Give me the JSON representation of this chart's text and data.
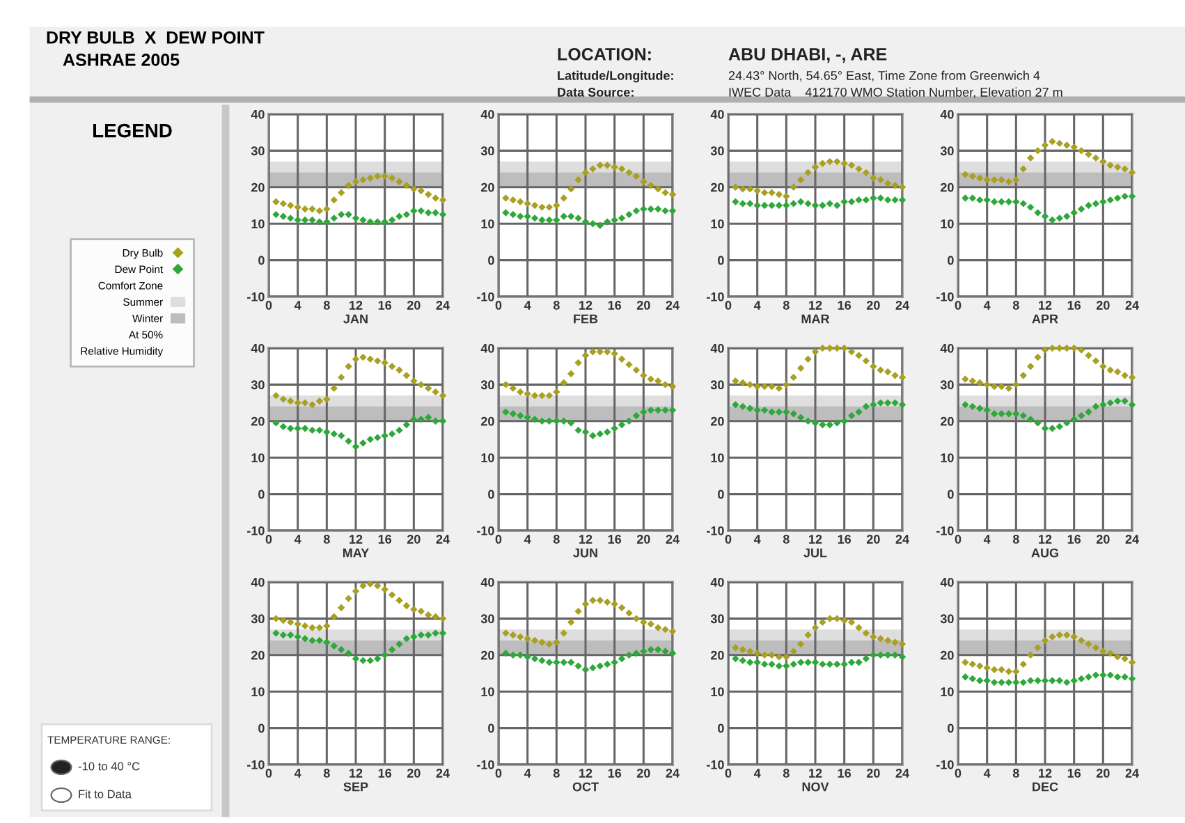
{
  "chart_data": [
    {
      "type": "scatter",
      "title": "DRY BULB  X  DEW POINT",
      "subtitle": "ASHRAE 2005",
      "xlabel": "JAN",
      "legend": "left",
      "grid": true,
      "marker": "diamond",
      "annotations": [
        "LOCATION:",
        "ABU DHABI, -, ARE",
        "Latitude/Longitude:",
        "24.43° North, 54.65° East, Time Zone from Greenwich 4",
        "Data Source:",
        "IWEC Data    412170 WMO Station Number, Elevation 27 m",
        "LEGEND",
        "Comfort Zone",
        "At 50%",
        "Relative Humidity",
        "TEMPERATURE RANGE:",
        "-10 to 40 °C",
        "Fit to Data"
      ],
      "x": [
        1,
        2,
        3,
        4,
        5,
        6,
        7,
        8,
        9,
        10,
        11,
        12,
        13,
        14,
        15,
        16,
        17,
        18,
        19,
        20,
        21,
        22,
        23,
        24
      ],
      "xlim": [
        0,
        24
      ],
      "xticks": [
        0,
        4,
        8,
        12,
        16,
        20,
        24
      ],
      "ylim": [
        -10,
        40
      ],
      "yticks": [
        -10,
        0,
        10,
        20,
        30,
        40
      ],
      "bands": [
        {
          "axis": "y",
          "from": 20,
          "to": 27,
          "label": "Summer",
          "color": "#dedede"
        },
        {
          "axis": "y",
          "from": 20,
          "to": 24,
          "label": "Winter",
          "color": "#bdbdbd"
        }
      ],
      "series": [
        {
          "name": "Dry Bulb",
          "color": "#a8a020",
          "values": [
            16,
            15.5,
            15,
            14.5,
            14,
            14,
            13.5,
            14,
            16.5,
            18.5,
            20.5,
            21.5,
            22,
            22.5,
            23,
            23,
            22.5,
            21.5,
            20.5,
            19.5,
            19,
            18,
            17,
            16.5
          ]
        },
        {
          "name": "Dew Point",
          "color": "#2ea83a",
          "values": [
            12.5,
            12,
            11.5,
            11,
            11,
            11,
            10.5,
            10.5,
            11.5,
            12.5,
            12.5,
            11.5,
            11,
            10.5,
            10.5,
            10.5,
            11,
            12,
            12.5,
            13.5,
            13.5,
            13,
            13,
            12.5
          ]
        }
      ]
    },
    {
      "type": "scatter",
      "xlabel": "FEB",
      "grid": true,
      "marker": "diamond",
      "x": [
        1,
        2,
        3,
        4,
        5,
        6,
        7,
        8,
        9,
        10,
        11,
        12,
        13,
        14,
        15,
        16,
        17,
        18,
        19,
        20,
        21,
        22,
        23,
        24
      ],
      "xlim": [
        0,
        24
      ],
      "xticks": [
        0,
        4,
        8,
        12,
        16,
        20,
        24
      ],
      "ylim": [
        -10,
        40
      ],
      "yticks": [
        -10,
        0,
        10,
        20,
        30,
        40
      ],
      "bands": [
        {
          "axis": "y",
          "from": 20,
          "to": 27,
          "color": "#dedede"
        },
        {
          "axis": "y",
          "from": 20,
          "to": 24,
          "color": "#bdbdbd"
        }
      ],
      "series": [
        {
          "color": "#a8a020",
          "values": [
            17,
            16.5,
            16,
            15.5,
            15,
            14.5,
            14.5,
            15,
            17,
            19.5,
            22,
            24,
            25,
            26,
            26,
            25.5,
            25,
            24,
            23,
            21.5,
            20.5,
            19.5,
            18.5,
            18
          ]
        },
        {
          "color": "#2ea83a",
          "values": [
            13,
            12.5,
            12,
            12,
            11.5,
            11,
            11,
            11,
            12,
            12,
            11.5,
            10.5,
            10,
            9.5,
            10.5,
            11,
            11.5,
            12.5,
            13.5,
            14,
            14,
            14,
            13.5,
            13.5
          ]
        }
      ]
    },
    {
      "type": "scatter",
      "xlabel": "MAR",
      "grid": true,
      "marker": "diamond",
      "x": [
        1,
        2,
        3,
        4,
        5,
        6,
        7,
        8,
        9,
        10,
        11,
        12,
        13,
        14,
        15,
        16,
        17,
        18,
        19,
        20,
        21,
        22,
        23,
        24
      ],
      "xlim": [
        0,
        24
      ],
      "xticks": [
        0,
        4,
        8,
        12,
        16,
        20,
        24
      ],
      "ylim": [
        -10,
        40
      ],
      "yticks": [
        -10,
        0,
        10,
        20,
        30,
        40
      ],
      "bands": [
        {
          "axis": "y",
          "from": 20,
          "to": 27,
          "color": "#dedede"
        },
        {
          "axis": "y",
          "from": 20,
          "to": 24,
          "color": "#bdbdbd"
        }
      ],
      "series": [
        {
          "color": "#a8a020",
          "values": [
            20,
            19.5,
            19.5,
            19,
            18.5,
            18.5,
            18,
            17.5,
            20,
            22,
            24,
            25.5,
            26.5,
            27,
            27,
            26.5,
            26,
            25,
            24,
            22.5,
            22,
            21,
            20.5,
            20
          ]
        },
        {
          "color": "#2ea83a",
          "values": [
            16,
            15.5,
            15.5,
            15,
            15,
            15,
            15,
            15,
            15.5,
            16,
            15.5,
            15,
            15,
            15.5,
            15,
            16,
            16,
            16.5,
            16.5,
            17,
            17,
            16.5,
            16.5,
            16.5
          ]
        }
      ]
    },
    {
      "type": "scatter",
      "xlabel": "APR",
      "grid": true,
      "marker": "diamond",
      "x": [
        1,
        2,
        3,
        4,
        5,
        6,
        7,
        8,
        9,
        10,
        11,
        12,
        13,
        14,
        15,
        16,
        17,
        18,
        19,
        20,
        21,
        22,
        23,
        24
      ],
      "xlim": [
        0,
        24
      ],
      "xticks": [
        0,
        4,
        8,
        12,
        16,
        20,
        24
      ],
      "ylim": [
        -10,
        40
      ],
      "yticks": [
        -10,
        0,
        10,
        20,
        30,
        40
      ],
      "bands": [
        {
          "axis": "y",
          "from": 20,
          "to": 27,
          "color": "#dedede"
        },
        {
          "axis": "y",
          "from": 20,
          "to": 24,
          "color": "#bdbdbd"
        }
      ],
      "series": [
        {
          "color": "#a8a020",
          "values": [
            23.5,
            23,
            22.5,
            22,
            22,
            22,
            21.5,
            22,
            25,
            28,
            30,
            31.5,
            32.5,
            32,
            31.5,
            31,
            30,
            29,
            28,
            27,
            26,
            25.5,
            25,
            24
          ]
        },
        {
          "color": "#2ea83a",
          "values": [
            17,
            17,
            16.5,
            16.5,
            16,
            16,
            16,
            16,
            15.5,
            14.5,
            13,
            12,
            11,
            11.5,
            12,
            13,
            14,
            15,
            15.5,
            16,
            16.5,
            17,
            17.5,
            17.5
          ]
        }
      ]
    },
    {
      "type": "scatter",
      "xlabel": "MAY",
      "grid": true,
      "marker": "diamond",
      "x": [
        1,
        2,
        3,
        4,
        5,
        6,
        7,
        8,
        9,
        10,
        11,
        12,
        13,
        14,
        15,
        16,
        17,
        18,
        19,
        20,
        21,
        22,
        23,
        24
      ],
      "xlim": [
        0,
        24
      ],
      "xticks": [
        0,
        4,
        8,
        12,
        16,
        20,
        24
      ],
      "ylim": [
        -10,
        40
      ],
      "yticks": [
        -10,
        0,
        10,
        20,
        30,
        40
      ],
      "bands": [
        {
          "axis": "y",
          "from": 20,
          "to": 27,
          "color": "#dedede"
        },
        {
          "axis": "y",
          "from": 20,
          "to": 24,
          "color": "#bdbdbd"
        }
      ],
      "series": [
        {
          "color": "#a8a020",
          "values": [
            27,
            26,
            25.5,
            25,
            25,
            24.5,
            25.5,
            26,
            29,
            32,
            35,
            37,
            37.5,
            37,
            36.5,
            36,
            35,
            34,
            32.5,
            31,
            30,
            29,
            28,
            27
          ]
        },
        {
          "color": "#2ea83a",
          "values": [
            19.5,
            18.5,
            18,
            18,
            18,
            17.5,
            17.5,
            17,
            16.5,
            16,
            14.5,
            13,
            14,
            15,
            15.5,
            16,
            16.5,
            17.5,
            19,
            20.5,
            20.5,
            21,
            20,
            20
          ]
        }
      ]
    },
    {
      "type": "scatter",
      "xlabel": "JUN",
      "grid": true,
      "marker": "diamond",
      "x": [
        1,
        2,
        3,
        4,
        5,
        6,
        7,
        8,
        9,
        10,
        11,
        12,
        13,
        14,
        15,
        16,
        17,
        18,
        19,
        20,
        21,
        22,
        23,
        24
      ],
      "xlim": [
        0,
        24
      ],
      "xticks": [
        0,
        4,
        8,
        12,
        16,
        20,
        24
      ],
      "ylim": [
        -10,
        40
      ],
      "yticks": [
        -10,
        0,
        10,
        20,
        30,
        40
      ],
      "bands": [
        {
          "axis": "y",
          "from": 20,
          "to": 27,
          "color": "#dedede"
        },
        {
          "axis": "y",
          "from": 20,
          "to": 24,
          "color": "#bdbdbd"
        }
      ],
      "series": [
        {
          "color": "#a8a020",
          "values": [
            30,
            29,
            28,
            27.5,
            27,
            27,
            27,
            28,
            30.5,
            33,
            36,
            38,
            39,
            39,
            39,
            38.5,
            37,
            35.5,
            34,
            32.5,
            31.5,
            31,
            30,
            29.5
          ]
        },
        {
          "color": "#2ea83a",
          "values": [
            22.5,
            22,
            21.5,
            21,
            20.5,
            20,
            20,
            20,
            20,
            19.5,
            17.5,
            17,
            16,
            16.5,
            17,
            18,
            19,
            20,
            21.5,
            22.5,
            23,
            23,
            23,
            23
          ]
        }
      ]
    },
    {
      "type": "scatter",
      "xlabel": "JUL",
      "grid": true,
      "marker": "diamond",
      "x": [
        1,
        2,
        3,
        4,
        5,
        6,
        7,
        8,
        9,
        10,
        11,
        12,
        13,
        14,
        15,
        16,
        17,
        18,
        19,
        20,
        21,
        22,
        23,
        24
      ],
      "xlim": [
        0,
        24
      ],
      "xticks": [
        0,
        4,
        8,
        12,
        16,
        20,
        24
      ],
      "ylim": [
        -10,
        40
      ],
      "yticks": [
        -10,
        0,
        10,
        20,
        30,
        40
      ],
      "bands": [
        {
          "axis": "y",
          "from": 20,
          "to": 27,
          "color": "#dedede"
        },
        {
          "axis": "y",
          "from": 20,
          "to": 24,
          "color": "#bdbdbd"
        }
      ],
      "series": [
        {
          "color": "#a8a020",
          "values": [
            31,
            30.5,
            30,
            29.5,
            29.5,
            29.5,
            29,
            30,
            32,
            34.5,
            37,
            39,
            40,
            40,
            40,
            40,
            39,
            38,
            36.5,
            35,
            34,
            33.5,
            32.5,
            32
          ]
        },
        {
          "color": "#2ea83a",
          "values": [
            24.5,
            24,
            23.5,
            23,
            23,
            22.5,
            22.5,
            22.5,
            22,
            21,
            20,
            19.5,
            19,
            19,
            19.5,
            20,
            21.5,
            22.5,
            24,
            24.5,
            25,
            25,
            25,
            24.5
          ]
        }
      ]
    },
    {
      "type": "scatter",
      "xlabel": "AUG",
      "grid": true,
      "marker": "diamond",
      "x": [
        1,
        2,
        3,
        4,
        5,
        6,
        7,
        8,
        9,
        10,
        11,
        12,
        13,
        14,
        15,
        16,
        17,
        18,
        19,
        20,
        21,
        22,
        23,
        24
      ],
      "xlim": [
        0,
        24
      ],
      "xticks": [
        0,
        4,
        8,
        12,
        16,
        20,
        24
      ],
      "ylim": [
        -10,
        40
      ],
      "yticks": [
        -10,
        0,
        10,
        20,
        30,
        40
      ],
      "bands": [
        {
          "axis": "y",
          "from": 20,
          "to": 27,
          "color": "#dedede"
        },
        {
          "axis": "y",
          "from": 20,
          "to": 24,
          "color": "#bdbdbd"
        }
      ],
      "series": [
        {
          "color": "#a8a020",
          "values": [
            31.5,
            31,
            30.5,
            30,
            29.5,
            29.5,
            29,
            30,
            32.5,
            35,
            37.5,
            39.5,
            40,
            40,
            40,
            40,
            39.5,
            38,
            36.5,
            35,
            34,
            33.5,
            32.5,
            32
          ]
        },
        {
          "color": "#2ea83a",
          "values": [
            24.5,
            24,
            23.5,
            23,
            22,
            22,
            22,
            22,
            21.5,
            20.5,
            19.5,
            18,
            18,
            18.5,
            19.5,
            20.5,
            21.5,
            22.5,
            24,
            24.5,
            25,
            25.5,
            25.5,
            24.5
          ]
        }
      ]
    },
    {
      "type": "scatter",
      "xlabel": "SEP",
      "grid": true,
      "marker": "diamond",
      "x": [
        1,
        2,
        3,
        4,
        5,
        6,
        7,
        8,
        9,
        10,
        11,
        12,
        13,
        14,
        15,
        16,
        17,
        18,
        19,
        20,
        21,
        22,
        23,
        24
      ],
      "xlim": [
        0,
        24
      ],
      "xticks": [
        0,
        4,
        8,
        12,
        16,
        20,
        24
      ],
      "ylim": [
        -10,
        40
      ],
      "yticks": [
        -10,
        0,
        10,
        20,
        30,
        40
      ],
      "bands": [
        {
          "axis": "y",
          "from": 20,
          "to": 27,
          "color": "#dedede"
        },
        {
          "axis": "y",
          "from": 20,
          "to": 24,
          "color": "#bdbdbd"
        }
      ],
      "series": [
        {
          "color": "#a8a020",
          "values": [
            30,
            29.5,
            29,
            28.5,
            28,
            27.5,
            27.5,
            28,
            30.5,
            33,
            35.5,
            37.5,
            39,
            39.5,
            39,
            38,
            36.5,
            35,
            33.5,
            32.5,
            32,
            31,
            30.5,
            30
          ]
        },
        {
          "color": "#2ea83a",
          "values": [
            26,
            25.5,
            25.5,
            25,
            24.5,
            24,
            24,
            23.5,
            22.5,
            21.5,
            20.5,
            19,
            18.5,
            18.5,
            19,
            20,
            21.5,
            23,
            24.5,
            25,
            25.5,
            25.5,
            26,
            26
          ]
        }
      ]
    },
    {
      "type": "scatter",
      "xlabel": "OCT",
      "grid": true,
      "marker": "diamond",
      "x": [
        1,
        2,
        3,
        4,
        5,
        6,
        7,
        8,
        9,
        10,
        11,
        12,
        13,
        14,
        15,
        16,
        17,
        18,
        19,
        20,
        21,
        22,
        23,
        24
      ],
      "xlim": [
        0,
        24
      ],
      "xticks": [
        0,
        4,
        8,
        12,
        16,
        20,
        24
      ],
      "ylim": [
        -10,
        40
      ],
      "yticks": [
        -10,
        0,
        10,
        20,
        30,
        40
      ],
      "bands": [
        {
          "axis": "y",
          "from": 20,
          "to": 27,
          "color": "#dedede"
        },
        {
          "axis": "y",
          "from": 20,
          "to": 24,
          "color": "#bdbdbd"
        }
      ],
      "series": [
        {
          "color": "#a8a020",
          "values": [
            26,
            25.5,
            25,
            24.5,
            24,
            23.5,
            23,
            23.5,
            26,
            29,
            32,
            34,
            35,
            35,
            34.5,
            34,
            33,
            31.5,
            30,
            29,
            28.5,
            27.5,
            27,
            26.5
          ]
        },
        {
          "color": "#2ea83a",
          "values": [
            20.5,
            20,
            20,
            19.5,
            19,
            18.5,
            18,
            18,
            18,
            18,
            17,
            16,
            16.5,
            17,
            17.5,
            18,
            19,
            20,
            20.5,
            21,
            21.5,
            21.5,
            21,
            20.5
          ]
        }
      ]
    },
    {
      "type": "scatter",
      "xlabel": "NOV",
      "grid": true,
      "marker": "diamond",
      "x": [
        1,
        2,
        3,
        4,
        5,
        6,
        7,
        8,
        9,
        10,
        11,
        12,
        13,
        14,
        15,
        16,
        17,
        18,
        19,
        20,
        21,
        22,
        23,
        24
      ],
      "xlim": [
        0,
        24
      ],
      "xticks": [
        0,
        4,
        8,
        12,
        16,
        20,
        24
      ],
      "ylim": [
        -10,
        40
      ],
      "yticks": [
        -10,
        0,
        10,
        20,
        30,
        40
      ],
      "bands": [
        {
          "axis": "y",
          "from": 20,
          "to": 27,
          "color": "#dedede"
        },
        {
          "axis": "y",
          "from": 20,
          "to": 24,
          "color": "#bdbdbd"
        }
      ],
      "series": [
        {
          "color": "#a8a020",
          "values": [
            22,
            21.5,
            21,
            20.5,
            20,
            20,
            19.5,
            19.5,
            21,
            23,
            25.5,
            27.5,
            29,
            30,
            30,
            29.5,
            29,
            27.5,
            26,
            25,
            24.5,
            24,
            23.5,
            23
          ]
        },
        {
          "color": "#2ea83a",
          "values": [
            19,
            18.5,
            18,
            18,
            17.5,
            17.5,
            17,
            17,
            17.5,
            18,
            18,
            18,
            17.5,
            17.5,
            17.5,
            17.5,
            18,
            18,
            19,
            20,
            20,
            20,
            20,
            19.5
          ]
        }
      ]
    },
    {
      "type": "scatter",
      "xlabel": "DEC",
      "grid": true,
      "marker": "diamond",
      "x": [
        1,
        2,
        3,
        4,
        5,
        6,
        7,
        8,
        9,
        10,
        11,
        12,
        13,
        14,
        15,
        16,
        17,
        18,
        19,
        20,
        21,
        22,
        23,
        24
      ],
      "xlim": [
        0,
        24
      ],
      "xticks": [
        0,
        4,
        8,
        12,
        16,
        20,
        24
      ],
      "ylim": [
        -10,
        40
      ],
      "yticks": [
        -10,
        0,
        10,
        20,
        30,
        40
      ],
      "bands": [
        {
          "axis": "y",
          "from": 20,
          "to": 27,
          "color": "#dedede"
        },
        {
          "axis": "y",
          "from": 20,
          "to": 24,
          "color": "#bdbdbd"
        }
      ],
      "series": [
        {
          "color": "#a8a020",
          "values": [
            18,
            17.5,
            17,
            16.5,
            16,
            16,
            15.5,
            15.5,
            17.5,
            20,
            22,
            24,
            25,
            25.5,
            25.5,
            25,
            24,
            23,
            22,
            21,
            20.5,
            19.5,
            19,
            18
          ]
        },
        {
          "color": "#2ea83a",
          "values": [
            14,
            13.5,
            13,
            13,
            12.5,
            12.5,
            12.5,
            12.5,
            12.5,
            13,
            13,
            13,
            13,
            13,
            12.5,
            13,
            13.5,
            14,
            14.5,
            14.5,
            14.5,
            14,
            14,
            13.5
          ]
        }
      ]
    }
  ]
}
